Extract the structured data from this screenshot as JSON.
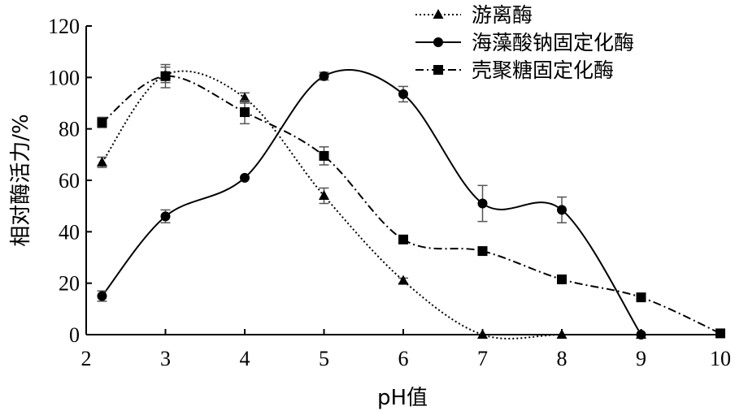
{
  "chart_data": {
    "type": "line",
    "xlabel": "pH值",
    "ylabel": "相对酶活力/%",
    "xlim": [
      2,
      10
    ],
    "ylim": [
      0,
      120
    ],
    "xticks": [
      2,
      3,
      4,
      5,
      6,
      7,
      8,
      9,
      10
    ],
    "yticks": [
      0,
      20,
      40,
      60,
      80,
      100,
      120
    ],
    "grid": false,
    "legend_position": "top-right",
    "series": [
      {
        "name": "游离酶",
        "marker": "triangle",
        "line_style": "dotted",
        "color": "#000000",
        "x": [
          2.2,
          3,
          4,
          5,
          6,
          7,
          8,
          9
        ],
        "y": [
          67,
          101,
          92,
          54,
          21,
          0,
          0,
          0
        ],
        "err": [
          2,
          3,
          2,
          3,
          1,
          0,
          0,
          0
        ]
      },
      {
        "name": "海藻酸钠固定化酶",
        "marker": "circle",
        "line_style": "solid",
        "color": "#000000",
        "x": [
          2.2,
          3,
          4,
          5,
          6,
          7,
          8,
          9
        ],
        "y": [
          15,
          46,
          61,
          100.5,
          93.5,
          51,
          48.5,
          0
        ],
        "err": [
          2,
          2.5,
          0,
          1.5,
          3,
          7,
          5,
          0
        ]
      },
      {
        "name": "壳聚糖固定化酶",
        "marker": "square",
        "line_style": "dashdot",
        "color": "#000000",
        "x": [
          2.2,
          3,
          4,
          5,
          6,
          7,
          8,
          9,
          10
        ],
        "y": [
          82.5,
          100.5,
          86.5,
          69.5,
          37,
          32.5,
          21.5,
          14.5,
          0.5
        ],
        "err": [
          2,
          4.5,
          4.5,
          3.5,
          1,
          0,
          0,
          0,
          0
        ]
      }
    ]
  }
}
